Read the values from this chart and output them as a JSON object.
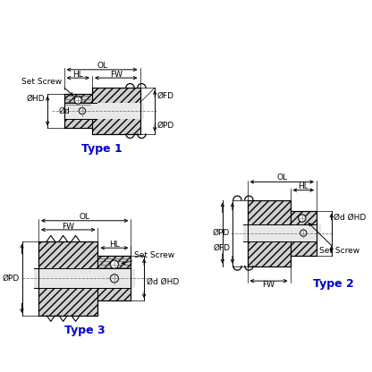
{
  "bg_color": "#ffffff",
  "type1_label": "Type 1",
  "type2_label": "Type 2",
  "type3_label": "Type 3",
  "type_label_color": "#0000cc",
  "labels": {
    "OL": "OL",
    "HL": "HL",
    "FW": "FW",
    "FD": "ØFD",
    "PD": "ØPD",
    "HD": "ØHD",
    "d": "Ød",
    "set_screw": "Set Screw"
  },
  "gray_fill": "#d0d0d0",
  "light_fill": "#e8e8e8",
  "hatch": "////",
  "fs": 6.5,
  "fs_type": 9
}
